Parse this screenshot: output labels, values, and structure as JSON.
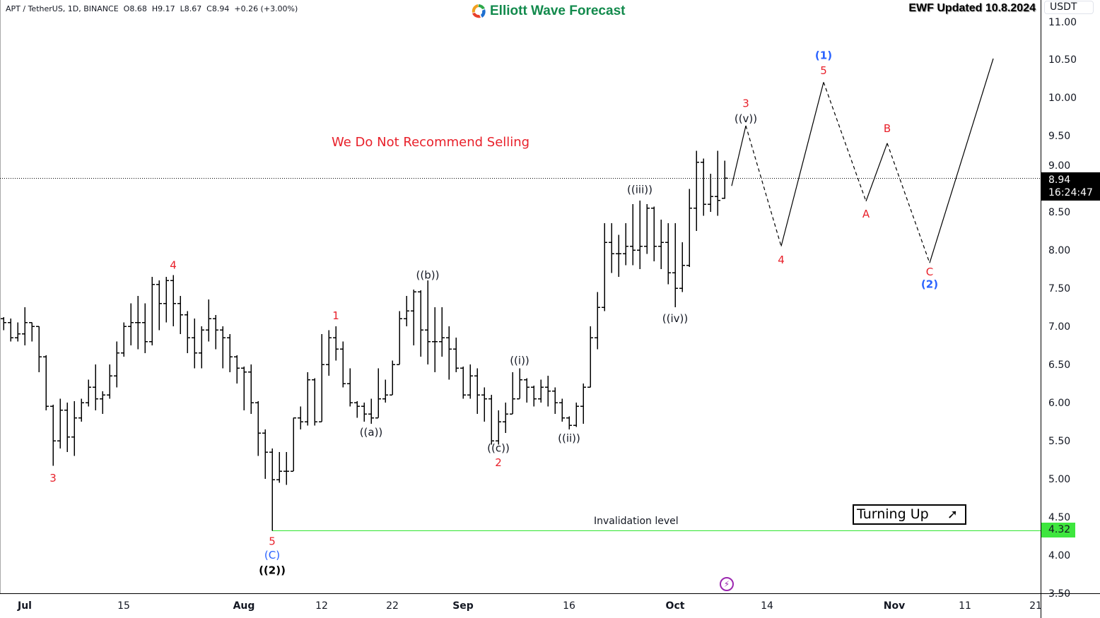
{
  "header": {
    "symbol": "APT / TetherUS, 1D, BINANCE",
    "ohlc": "O8.68  H9.17  L8.67  C8.94  +0.26 (+3.00%)"
  },
  "logo": {
    "text": "Elliott Wave Forecast"
  },
  "updated": "EWF Updated 10.8.2024",
  "currency": "USDT",
  "note": "We Do Not Recommend Selling",
  "invalidation": {
    "label": "Invalidation level",
    "price": 4.32,
    "price_label": "4.32",
    "color": "#3ee63e"
  },
  "current": {
    "price_label": "8.94",
    "countdown": "16:24:47"
  },
  "turning_up": {
    "label": "Turning Up",
    "icon": "arrow-up-right-icon"
  },
  "alert_icon": "lightning-icon",
  "chart_data": {
    "type": "ohlc",
    "ylim": [
      3.5,
      11.0
    ],
    "yticks": [
      "3.50",
      "4.00",
      "4.50",
      "5.00",
      "5.50",
      "6.00",
      "6.50",
      "7.00",
      "7.50",
      "8.00",
      "8.50",
      "9.00",
      "9.50",
      "10.00",
      "10.50",
      "11.00"
    ],
    "xticks": [
      {
        "date": "2024-07-01",
        "label": "Jul"
      },
      {
        "date": "2024-07-15",
        "label": "15"
      },
      {
        "date": "2024-08-01",
        "label": "Aug"
      },
      {
        "date": "2024-08-12",
        "label": "12"
      },
      {
        "date": "2024-08-22",
        "label": "22"
      },
      {
        "date": "2024-09-01",
        "label": "Sep"
      },
      {
        "date": "2024-09-16",
        "label": "16"
      },
      {
        "date": "2024-10-01",
        "label": "Oct"
      },
      {
        "date": "2024-10-14",
        "label": "14"
      },
      {
        "date": "2024-11-01",
        "label": "Nov"
      },
      {
        "date": "2024-11-11",
        "label": "11"
      },
      {
        "date": "2024-11-21",
        "label": "21"
      }
    ],
    "bars": [
      [
        "2024-06-28",
        7.1,
        7.12,
        6.95,
        7.05
      ],
      [
        "2024-06-29",
        7.05,
        7.1,
        6.8,
        6.85
      ],
      [
        "2024-06-30",
        6.85,
        7.05,
        6.8,
        6.9
      ],
      [
        "2024-07-01",
        6.9,
        7.25,
        6.75,
        7.05
      ],
      [
        "2024-07-02",
        7.05,
        7.05,
        6.8,
        7.0
      ],
      [
        "2024-07-03",
        7.0,
        7.0,
        6.4,
        6.6
      ],
      [
        "2024-07-04",
        6.6,
        6.62,
        5.9,
        5.95
      ],
      [
        "2024-07-05",
        5.95,
        5.97,
        5.17,
        5.5
      ],
      [
        "2024-07-06",
        5.5,
        6.05,
        5.4,
        5.9
      ],
      [
        "2024-07-07",
        5.9,
        6.0,
        5.35,
        5.55
      ],
      [
        "2024-07-08",
        5.55,
        6.02,
        5.3,
        5.8
      ],
      [
        "2024-07-09",
        5.8,
        6.05,
        5.75,
        6.0
      ],
      [
        "2024-07-10",
        6.0,
        6.3,
        5.95,
        6.2
      ],
      [
        "2024-07-11",
        6.2,
        6.5,
        5.9,
        6.05
      ],
      [
        "2024-07-12",
        6.05,
        6.15,
        5.85,
        6.1
      ],
      [
        "2024-07-13",
        6.1,
        6.5,
        6.05,
        6.35
      ],
      [
        "2024-07-14",
        6.35,
        6.8,
        6.2,
        6.65
      ],
      [
        "2024-07-15",
        6.65,
        7.05,
        6.6,
        7.0
      ],
      [
        "2024-07-16",
        7.0,
        7.3,
        6.75,
        7.05
      ],
      [
        "2024-07-17",
        7.05,
        7.4,
        6.7,
        7.05
      ],
      [
        "2024-07-18",
        7.05,
        7.3,
        6.65,
        6.8
      ],
      [
        "2024-07-19",
        6.8,
        7.65,
        6.75,
        7.55
      ],
      [
        "2024-07-20",
        7.55,
        7.6,
        6.95,
        7.3
      ],
      [
        "2024-07-21",
        7.3,
        7.65,
        7.05,
        7.6
      ],
      [
        "2024-07-22",
        7.6,
        7.67,
        7.0,
        7.3
      ],
      [
        "2024-07-23",
        7.3,
        7.4,
        6.9,
        7.15
      ],
      [
        "2024-07-24",
        7.15,
        7.2,
        6.65,
        6.85
      ],
      [
        "2024-07-25",
        6.85,
        7.1,
        6.45,
        6.65
      ],
      [
        "2024-07-26",
        6.65,
        7.0,
        6.45,
        6.95
      ],
      [
        "2024-07-27",
        6.95,
        7.35,
        6.8,
        7.1
      ],
      [
        "2024-07-28",
        7.1,
        7.15,
        6.7,
        6.95
      ],
      [
        "2024-07-29",
        6.95,
        7.0,
        6.45,
        6.85
      ],
      [
        "2024-07-30",
        6.85,
        6.9,
        6.4,
        6.6
      ],
      [
        "2024-07-31",
        6.6,
        6.62,
        6.25,
        6.45
      ],
      [
        "2024-08-01",
        6.45,
        6.47,
        5.9,
        6.4
      ],
      [
        "2024-08-02",
        6.4,
        6.5,
        5.85,
        6.0
      ],
      [
        "2024-08-03",
        6.0,
        6.02,
        5.3,
        5.6
      ],
      [
        "2024-08-04",
        5.6,
        5.65,
        5.0,
        5.35
      ],
      [
        "2024-08-05",
        5.35,
        5.4,
        4.32,
        4.99
      ],
      [
        "2024-08-06",
        4.99,
        5.35,
        4.95,
        5.1
      ],
      [
        "2024-08-07",
        5.1,
        5.35,
        4.92,
        5.1
      ],
      [
        "2024-08-08",
        5.1,
        5.8,
        5.1,
        5.8
      ],
      [
        "2024-08-09",
        5.8,
        5.95,
        5.65,
        5.75
      ],
      [
        "2024-08-10",
        5.75,
        6.4,
        5.7,
        6.3
      ],
      [
        "2024-08-11",
        6.3,
        6.32,
        5.7,
        5.75
      ],
      [
        "2024-08-12",
        5.75,
        6.9,
        5.75,
        6.5
      ],
      [
        "2024-08-13",
        6.5,
        6.95,
        6.35,
        6.85
      ],
      [
        "2024-08-14",
        6.85,
        7.0,
        6.55,
        6.7
      ],
      [
        "2024-08-15",
        6.7,
        6.8,
        6.2,
        6.25
      ],
      [
        "2024-08-16",
        6.25,
        6.45,
        5.95,
        6.0
      ],
      [
        "2024-08-17",
        6.0,
        6.02,
        5.8,
        5.95
      ],
      [
        "2024-08-18",
        5.95,
        6.0,
        5.75,
        5.85
      ],
      [
        "2024-08-19",
        5.85,
        6.05,
        5.72,
        5.8
      ],
      [
        "2024-08-20",
        5.8,
        6.45,
        5.8,
        6.05
      ],
      [
        "2024-08-21",
        6.05,
        6.3,
        6.0,
        6.1
      ],
      [
        "2024-08-22",
        6.1,
        6.55,
        6.1,
        6.5
      ],
      [
        "2024-08-23",
        6.5,
        7.2,
        6.5,
        7.1
      ],
      [
        "2024-08-24",
        7.1,
        7.4,
        7.0,
        7.2
      ],
      [
        "2024-08-25",
        7.2,
        7.48,
        6.75,
        7.45
      ],
      [
        "2024-08-26",
        7.45,
        7.47,
        6.6,
        6.95
      ],
      [
        "2024-08-27",
        6.95,
        7.6,
        6.5,
        6.8
      ],
      [
        "2024-08-28",
        6.8,
        7.25,
        6.4,
        6.8
      ],
      [
        "2024-08-29",
        6.8,
        7.25,
        6.6,
        6.85
      ],
      [
        "2024-08-30",
        6.85,
        7.0,
        6.3,
        6.7
      ],
      [
        "2024-08-31",
        6.7,
        6.85,
        6.4,
        6.45
      ],
      [
        "2024-09-01",
        6.45,
        6.47,
        6.05,
        6.1
      ],
      [
        "2024-09-02",
        6.1,
        6.5,
        6.05,
        6.35
      ],
      [
        "2024-09-03",
        6.35,
        6.45,
        5.85,
        6.1
      ],
      [
        "2024-09-04",
        6.1,
        6.2,
        5.75,
        6.05
      ],
      [
        "2024-09-05",
        6.05,
        6.1,
        5.45,
        5.5
      ],
      [
        "2024-09-06",
        5.5,
        5.9,
        5.45,
        5.75
      ],
      [
        "2024-09-07",
        5.75,
        6.0,
        5.6,
        5.85
      ],
      [
        "2024-09-08",
        5.85,
        6.4,
        5.85,
        6.05
      ],
      [
        "2024-09-09",
        6.05,
        6.45,
        6.05,
        6.3
      ],
      [
        "2024-09-10",
        6.3,
        6.32,
        6.0,
        6.2
      ],
      [
        "2024-09-11",
        6.2,
        6.22,
        5.95,
        6.05
      ],
      [
        "2024-09-12",
        6.05,
        6.3,
        6.0,
        6.2
      ],
      [
        "2024-09-13",
        6.2,
        6.35,
        5.95,
        6.15
      ],
      [
        "2024-09-14",
        6.15,
        6.2,
        5.85,
        6.0
      ],
      [
        "2024-09-15",
        6.0,
        6.05,
        5.75,
        5.8
      ],
      [
        "2024-09-16",
        5.8,
        5.82,
        5.65,
        5.7
      ],
      [
        "2024-09-17",
        5.7,
        6.0,
        5.68,
        5.95
      ],
      [
        "2024-09-18",
        5.95,
        6.25,
        5.72,
        6.2
      ],
      [
        "2024-09-19",
        6.2,
        7.0,
        6.2,
        6.85
      ],
      [
        "2024-09-20",
        6.85,
        7.45,
        6.7,
        7.25
      ],
      [
        "2024-09-21",
        7.25,
        8.35,
        7.2,
        8.1
      ],
      [
        "2024-09-22",
        8.1,
        8.35,
        7.7,
        7.95
      ],
      [
        "2024-09-23",
        7.95,
        8.2,
        7.65,
        7.95
      ],
      [
        "2024-09-24",
        7.95,
        8.35,
        7.8,
        8.05
      ],
      [
        "2024-09-25",
        8.05,
        8.6,
        7.8,
        8.0
      ],
      [
        "2024-09-26",
        8.0,
        8.65,
        7.75,
        8.05
      ],
      [
        "2024-09-27",
        8.05,
        8.6,
        7.95,
        8.55
      ],
      [
        "2024-09-28",
        8.55,
        8.57,
        7.85,
        8.05
      ],
      [
        "2024-09-29",
        8.05,
        8.4,
        7.75,
        8.1
      ],
      [
        "2024-09-30",
        8.1,
        8.35,
        7.55,
        7.7
      ],
      [
        "2024-10-01",
        7.7,
        8.35,
        7.25,
        7.5
      ],
      [
        "2024-10-02",
        7.5,
        8.1,
        7.45,
        7.8
      ],
      [
        "2024-10-03",
        7.8,
        8.8,
        7.78,
        8.55
      ],
      [
        "2024-10-04",
        8.55,
        9.3,
        8.25,
        9.15
      ],
      [
        "2024-10-05",
        9.15,
        9.2,
        8.45,
        8.6
      ],
      [
        "2024-10-06",
        8.6,
        9.0,
        8.5,
        8.7
      ],
      [
        "2024-10-07",
        8.7,
        9.3,
        8.45,
        8.65
      ],
      [
        "2024-10-08",
        8.68,
        9.17,
        8.67,
        8.94
      ]
    ],
    "projection": [
      {
        "date": "2024-10-09",
        "price": 8.84,
        "style": "solid"
      },
      {
        "date": "2024-10-11",
        "price": 9.63,
        "style": "dashed"
      },
      {
        "date": "2024-10-16",
        "price": 8.05,
        "style": "solid"
      },
      {
        "date": "2024-10-22",
        "price": 10.2,
        "style": "dashed"
      },
      {
        "date": "2024-10-28",
        "price": 8.64,
        "style": "solid"
      },
      {
        "date": "2024-10-31",
        "price": 9.4,
        "style": "dashed"
      },
      {
        "date": "2024-11-06",
        "price": 7.83,
        "style": "solid"
      },
      {
        "date": "2024-11-15",
        "price": 10.51,
        "style": "solid"
      }
    ],
    "labels": [
      {
        "text": "3",
        "date": "2024-07-05",
        "price": 5.02,
        "color": "#e8202a"
      },
      {
        "text": "4",
        "date": "2024-07-22",
        "price": 7.81,
        "color": "#e8202a"
      },
      {
        "text": "5",
        "date": "2024-08-05",
        "price": 4.19,
        "color": "#e8202a"
      },
      {
        "text": "(C)",
        "date": "2024-08-05",
        "price": 4.01,
        "color": "#2962ff"
      },
      {
        "text": "((2))",
        "date": "2024-08-05",
        "price": 3.81,
        "color": "#000000",
        "bold": true
      },
      {
        "text": "1",
        "date": "2024-08-14",
        "price": 7.15,
        "color": "#e8202a"
      },
      {
        "text": "((a))",
        "date": "2024-08-19",
        "price": 5.62,
        "color": "#131722"
      },
      {
        "text": "((b))",
        "date": "2024-08-27",
        "price": 7.68,
        "color": "#131722"
      },
      {
        "text": "((c))",
        "date": "2024-09-06",
        "price": 5.41,
        "color": "#131722"
      },
      {
        "text": "2",
        "date": "2024-09-06",
        "price": 5.22,
        "color": "#e8202a"
      },
      {
        "text": "((i))",
        "date": "2024-09-09",
        "price": 6.56,
        "color": "#131722"
      },
      {
        "text": "((ii))",
        "date": "2024-09-16",
        "price": 5.54,
        "color": "#131722"
      },
      {
        "text": "((iii))",
        "date": "2024-09-26",
        "price": 8.8,
        "color": "#131722"
      },
      {
        "text": "((iv))",
        "date": "2024-10-01",
        "price": 7.11,
        "color": "#131722"
      },
      {
        "text": "3",
        "date": "2024-10-11",
        "price": 9.93,
        "color": "#e8202a"
      },
      {
        "text": "((v))",
        "date": "2024-10-11",
        "price": 9.73,
        "color": "#131722"
      },
      {
        "text": "4",
        "date": "2024-10-16",
        "price": 7.88,
        "color": "#e8202a"
      },
      {
        "text": "(1)",
        "date": "2024-10-22",
        "price": 10.56,
        "color": "#2962ff",
        "bold": true
      },
      {
        "text": "5",
        "date": "2024-10-22",
        "price": 10.36,
        "color": "#e8202a"
      },
      {
        "text": "A",
        "date": "2024-10-28",
        "price": 8.48,
        "color": "#e8202a"
      },
      {
        "text": "B",
        "date": "2024-10-31",
        "price": 9.6,
        "color": "#e8202a"
      },
      {
        "text": "C",
        "date": "2024-11-06",
        "price": 7.72,
        "color": "#e8202a"
      },
      {
        "text": "(2)",
        "date": "2024-11-06",
        "price": 7.56,
        "color": "#2962ff",
        "bold": true
      }
    ]
  }
}
